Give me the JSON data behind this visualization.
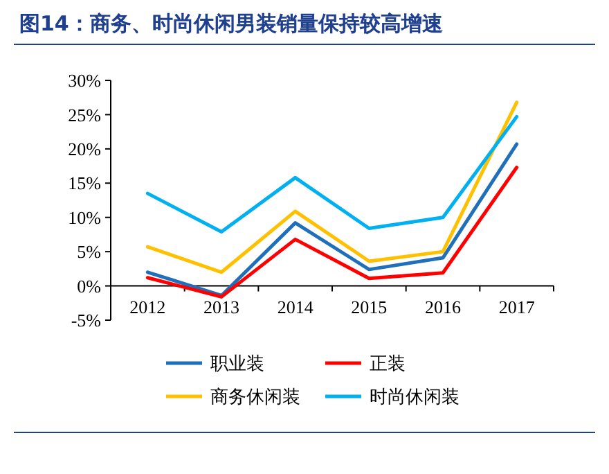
{
  "chart_data": {
    "type": "line",
    "title": "图14：商务、时尚休闲男装销量保持较高增速",
    "categories": [
      "2012",
      "2013",
      "2014",
      "2015",
      "2016",
      "2017"
    ],
    "series": [
      {
        "name": "职业装",
        "color": "#1f6fba",
        "values": [
          2.0,
          -1.4,
          9.2,
          2.4,
          4.1,
          20.7
        ]
      },
      {
        "name": "正装",
        "color": "#ff0000",
        "values": [
          1.2,
          -1.6,
          6.8,
          1.1,
          1.9,
          17.3
        ]
      },
      {
        "name": "商务休闲装",
        "color": "#ffc000",
        "values": [
          5.7,
          2.0,
          10.9,
          3.6,
          5.0,
          26.8
        ]
      },
      {
        "name": "时尚休闲装",
        "color": "#00b0f0",
        "values": [
          13.5,
          7.9,
          15.8,
          8.4,
          10.0,
          24.7
        ]
      }
    ],
    "ylim": [
      -5,
      30
    ],
    "yticks": [
      {
        "value": -5,
        "label": "-5%"
      },
      {
        "value": 0,
        "label": "0%"
      },
      {
        "value": 5,
        "label": "5%"
      },
      {
        "value": 10,
        "label": "10%"
      },
      {
        "value": 15,
        "label": "15%"
      },
      {
        "value": 20,
        "label": "20%"
      },
      {
        "value": 25,
        "label": "25%"
      },
      {
        "value": 30,
        "label": "30%"
      }
    ],
    "grid": false,
    "legend": "bottom",
    "line_style": "solid"
  }
}
